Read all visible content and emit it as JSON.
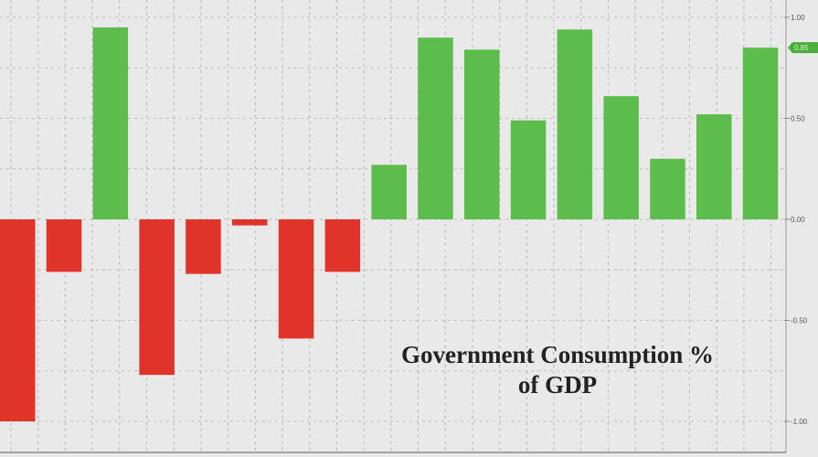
{
  "chart_data": {
    "type": "bar",
    "title": "Government Consumption % of GDP",
    "title_lines": [
      "Government Consumption %",
      "of GDP"
    ],
    "xlabel": "",
    "ylabel": "",
    "ylim": [
      -1.0,
      1.0
    ],
    "y_axis_position": "right",
    "y_ticks": [
      "1.00",
      "0.50",
      "0.00",
      "-0.50",
      "-1.00"
    ],
    "last_value_label": "0.85",
    "grid": true,
    "values": [
      -1.0,
      -0.26,
      0.95,
      -0.77,
      -0.27,
      -0.03,
      -0.59,
      -0.26,
      0.27,
      0.9,
      0.84,
      0.49,
      0.94,
      0.61,
      0.3,
      0.52,
      0.85
    ],
    "colors": {
      "positive": "#5cbd4c",
      "negative": "#e0332a",
      "background": "#e9e9e9",
      "last_value_badge": "#4caf3c"
    }
  }
}
